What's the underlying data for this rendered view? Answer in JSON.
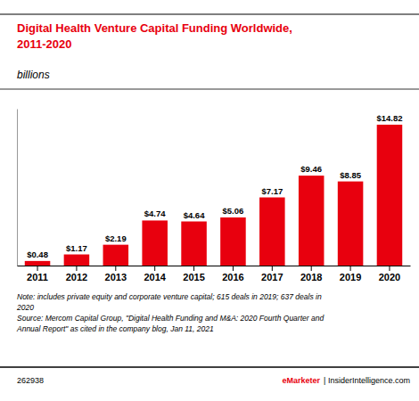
{
  "chart_data": {
    "type": "bar",
    "title": "Digital Health Venture Capital Funding Worldwide,\n2011-2020",
    "subtitle": "billions",
    "categories": [
      "2011",
      "2012",
      "2013",
      "2014",
      "2015",
      "2016",
      "2017",
      "2018",
      "2019",
      "2020"
    ],
    "values": [
      0.48,
      1.17,
      2.19,
      4.74,
      4.64,
      5.06,
      7.17,
      9.46,
      8.85,
      14.82
    ],
    "value_labels": [
      "$0.48",
      "$1.17",
      "$2.19",
      "$4.74",
      "$4.64",
      "$5.06",
      "$7.17",
      "$9.46",
      "$8.85",
      "$14.82"
    ],
    "data_labels": true,
    "color": "#e8000e",
    "ylim": [
      0,
      16.5
    ],
    "tick_labels": "x",
    "grid": false,
    "annotations": [
      "Note: includes private equity and corporate venture capital; 615 deals in 2019; 637 deals in\n2020\nSource: Mercom Capital Group, \"Digital Health Funding and M&A: 2020 Fourth Quarter and\nAnnual Report\" as cited in the company blog, Jan 11, 2021",
      "262938",
      "eMarketer",
      "| InsiderIntelligence.com"
    ]
  }
}
